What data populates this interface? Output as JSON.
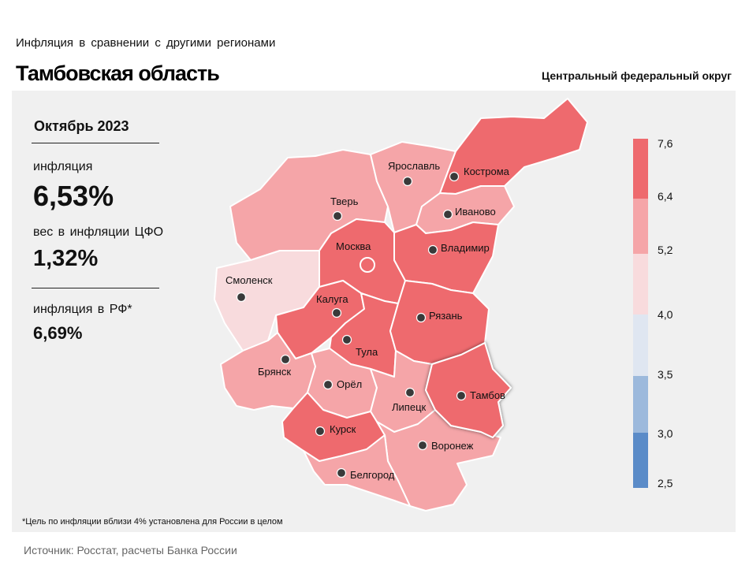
{
  "header": {
    "subtitle": "Инфляция  в сравнении  с другими  регионами",
    "title": "Тамбовская область",
    "district": "Центральный федеральный округ"
  },
  "stats": {
    "period": "Октябрь 2023",
    "inflation_label": "инфляция",
    "inflation_value": "6,53%",
    "weight_label": "вес в инфляции  ЦФО",
    "weight_value": "1,32%",
    "rf_label": "инфляция  в РФ*",
    "rf_value": "6,69%"
  },
  "legend": {
    "ticks": [
      "7,6",
      "6,4",
      "5,2",
      "4,0",
      "3,5",
      "3,0",
      "2,5"
    ],
    "colors": [
      "#ee6a6e",
      "#f5a5a8",
      "#f8dbdd",
      "#dfe6f1",
      "#9cb9dc",
      "#5a8bc8"
    ]
  },
  "map": {
    "highlight_region": "Тамбов",
    "capital": "Москва",
    "cities": [
      {
        "name": "Ярославль"
      },
      {
        "name": "Кострома"
      },
      {
        "name": "Тверь"
      },
      {
        "name": "Иваново"
      },
      {
        "name": "Москва"
      },
      {
        "name": "Владимир"
      },
      {
        "name": "Смоленск"
      },
      {
        "name": "Калуга"
      },
      {
        "name": "Рязань"
      },
      {
        "name": "Тула"
      },
      {
        "name": "Брянск"
      },
      {
        "name": "Орёл"
      },
      {
        "name": "Липецк"
      },
      {
        "name": "Тамбов"
      },
      {
        "name": "Курск"
      },
      {
        "name": "Воронеж"
      },
      {
        "name": "Белгород"
      }
    ]
  },
  "footnote": "*Цель по инфляции вблизи 4% установлена для России в целом",
  "source": "Источник: Росстат, расчеты Банка России"
}
